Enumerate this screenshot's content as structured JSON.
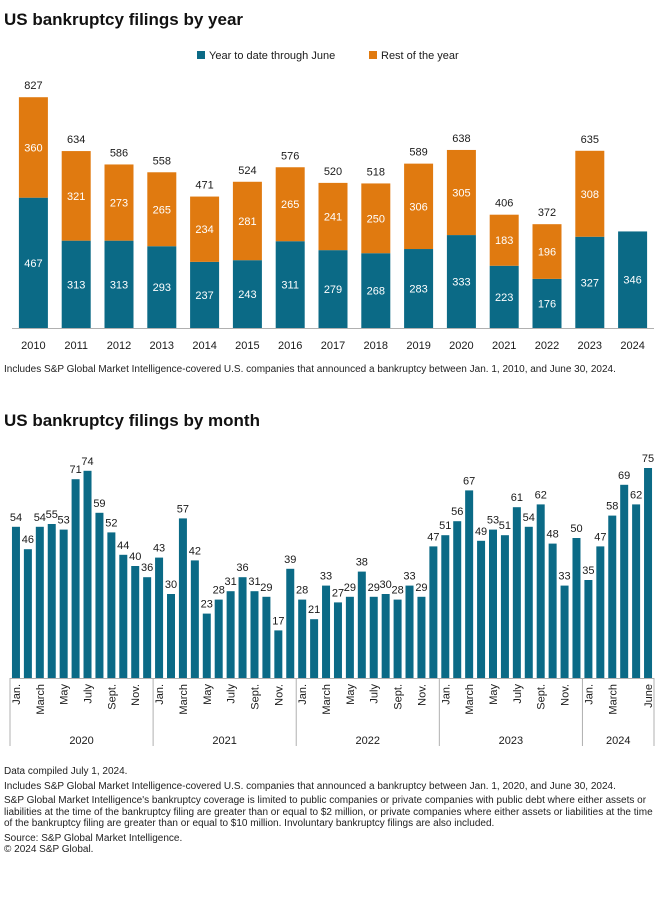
{
  "colors": {
    "ytd": "#0b6a86",
    "rest": "#e07a10",
    "axis": "#b0b0b0",
    "text": "#1a1a1a"
  },
  "chart_data": [
    {
      "type": "bar",
      "stacked": true,
      "title": "US bankruptcy filings by year",
      "categories": [
        "2010",
        "2011",
        "2012",
        "2013",
        "2014",
        "2015",
        "2016",
        "2017",
        "2018",
        "2019",
        "2020",
        "2021",
        "2022",
        "2023",
        "2024"
      ],
      "series": [
        {
          "name": "Year to date through June",
          "values": [
            467,
            313,
            313,
            293,
            237,
            243,
            311,
            279,
            268,
            283,
            333,
            223,
            176,
            327,
            346
          ]
        },
        {
          "name": "Rest of the year",
          "values": [
            360,
            321,
            273,
            265,
            234,
            281,
            265,
            241,
            250,
            306,
            305,
            183,
            196,
            308,
            null
          ]
        }
      ],
      "totals": [
        827,
        634,
        586,
        558,
        471,
        524,
        576,
        520,
        518,
        589,
        638,
        406,
        372,
        635,
        null
      ],
      "legend_position": "top-center",
      "ylim": [
        0,
        860
      ],
      "note": "Includes S&P Global Market Intelligence-covered U.S. companies that announced a bankruptcy between Jan. 1, 2010, and June 30, 2024."
    },
    {
      "type": "bar",
      "title": "US bankruptcy filings by month",
      "years": [
        "2020",
        "2021",
        "2022",
        "2023",
        "2024"
      ],
      "month_tick_labels": [
        "Jan.",
        "March",
        "May",
        "July",
        "Sept.",
        "Nov."
      ],
      "month_tick_labels_2024": [
        "Jan.",
        "March",
        "June"
      ],
      "values": [
        54,
        46,
        54,
        55,
        53,
        71,
        74,
        59,
        52,
        44,
        40,
        36,
        43,
        30,
        57,
        42,
        23,
        28,
        31,
        36,
        31,
        29,
        17,
        39,
        28,
        21,
        33,
        27,
        29,
        38,
        29,
        30,
        28,
        33,
        29,
        47,
        51,
        56,
        67,
        49,
        53,
        51,
        61,
        54,
        62,
        48,
        33,
        50,
        35,
        47,
        58,
        69,
        62,
        75
      ],
      "ylim": [
        0,
        80
      ]
    }
  ],
  "footer": {
    "compiled": "Data compiled July 1, 2024.",
    "includes": "Includes S&P Global Market Intelligence-covered U.S. companies that announced a bankruptcy between Jan. 1, 2020, and June 30, 2024.",
    "coverage": "S&P Global Market Intelligence's bankruptcy coverage is limited to public companies or private companies with public debt where either assets or liabilities at the time of the bankruptcy filing are greater than or equal to $2 million, or private companies where either assets or liabilities at the time of the bankruptcy filing are greater than or equal to $10 million. Involuntary bankruptcy filings are also included.",
    "source": "Source: S&P Global Market Intelligence.",
    "copyright": "© 2024 S&P Global."
  }
}
